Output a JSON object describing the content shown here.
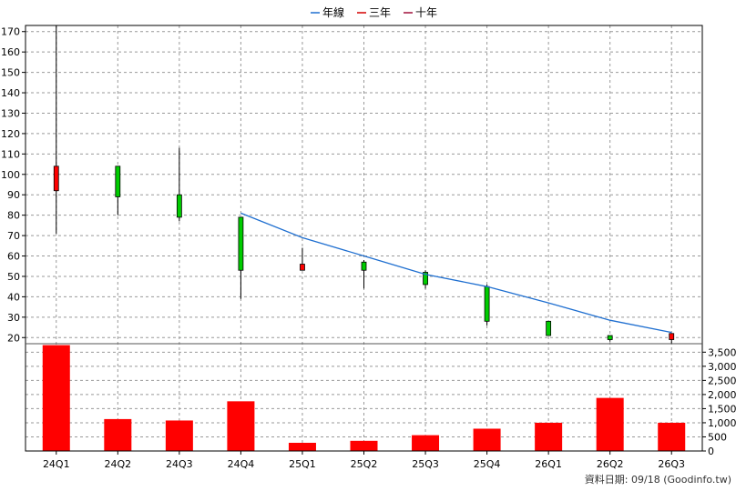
{
  "chart_data": {
    "type": "candlestick",
    "categories": [
      "24Q1",
      "24Q2",
      "24Q3",
      "24Q4",
      "25Q1",
      "25Q2",
      "25Q3",
      "25Q4",
      "26Q1",
      "26Q2",
      "26Q3"
    ],
    "legend": [
      {
        "name": "年線",
        "color": "#1f6fd0"
      },
      {
        "name": "三年",
        "color": "#d40000"
      },
      {
        "name": "十年",
        "color": "#a0103a"
      }
    ],
    "price_axis": {
      "ylim": [
        17,
        173
      ],
      "ticks": [
        20,
        30,
        40,
        50,
        60,
        70,
        80,
        90,
        100,
        110,
        120,
        130,
        140,
        150,
        160,
        170
      ]
    },
    "ohlc": [
      {
        "open": 92,
        "high": 173,
        "low": 71,
        "close": 104
      },
      {
        "open": 104,
        "high": 104,
        "low": 80,
        "close": 89
      },
      {
        "open": 90,
        "high": 113,
        "low": 77,
        "close": 79
      },
      {
        "open": 79,
        "high": 79,
        "low": 39,
        "close": 53
      },
      {
        "open": 53,
        "high": 64,
        "low": 53,
        "close": 56
      },
      {
        "open": 57,
        "high": 58,
        "low": 44,
        "close": 53
      },
      {
        "open": 52,
        "high": 53,
        "low": 44,
        "close": 46
      },
      {
        "open": 45,
        "high": 46,
        "low": 26,
        "close": 28
      },
      {
        "open": 28,
        "high": 28,
        "low": 21,
        "close": 21
      },
      {
        "open": 21,
        "high": 21,
        "low": 18,
        "close": 19
      },
      {
        "open": 19,
        "high": 22,
        "low": 17,
        "close": 22
      }
    ],
    "year_line": {
      "name": "年線",
      "start_index": 3,
      "values": [
        81,
        69,
        60,
        51,
        45,
        37,
        28.5,
        22.5
      ]
    },
    "volume_axis": {
      "ylim": [
        0,
        3800
      ],
      "ticks": [
        0,
        500,
        1000,
        1500,
        2000,
        2500,
        3000,
        3500
      ],
      "tick_labels": [
        "0",
        "500",
        "1,000",
        "1,500",
        "2,000",
        "2,500",
        "3,000",
        "3,500"
      ]
    },
    "volume": [
      3750,
      1130,
      1080,
      1760,
      290,
      360,
      560,
      790,
      1000,
      1880,
      1000
    ],
    "grid": true
  },
  "footer": {
    "date_label": "資料日期: 09/18",
    "source": "(Goodinfo.tw)"
  }
}
